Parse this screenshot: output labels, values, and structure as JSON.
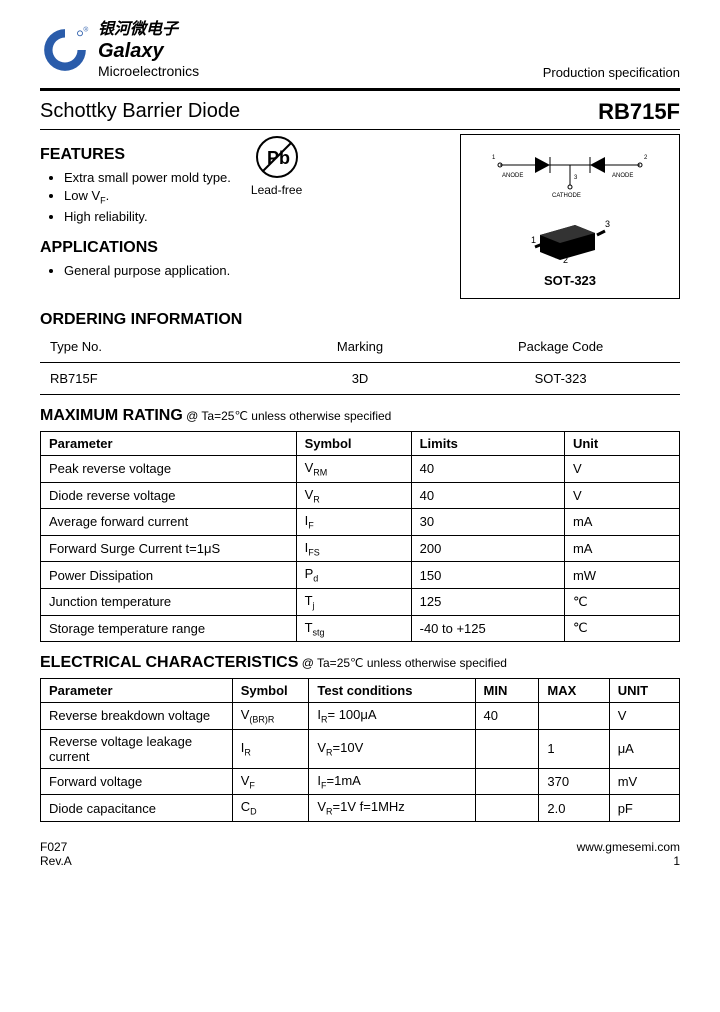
{
  "header": {
    "chinese": "银河微电子",
    "company1": "Galaxy",
    "company2": "Microelectronics",
    "spec": "Production specification"
  },
  "title": {
    "product": "Schottky Barrier Diode",
    "partno": "RB715F"
  },
  "features": {
    "heading": "FEATURES",
    "items": [
      "Extra small power mold type.",
      "Low V",
      "High reliability."
    ],
    "lowvf_sub": "F",
    "leadfree": "Lead-free"
  },
  "applications": {
    "heading": "APPLICATIONS",
    "items": [
      "General purpose application."
    ]
  },
  "package": {
    "label": "SOT-323",
    "anode": "ANODE",
    "cathode": "CATHODE"
  },
  "ordering": {
    "heading": "ORDERING INFORMATION",
    "cols": [
      "Type No.",
      "Marking",
      "Package Code"
    ],
    "row": [
      "RB715F",
      "3D",
      "SOT-323"
    ]
  },
  "maxrating": {
    "heading": "MAXIMUM RATING",
    "sub": " @ Ta=25℃ unless otherwise specified",
    "cols": [
      "Parameter",
      "Symbol",
      "Limits",
      "Unit"
    ],
    "rows": [
      {
        "p": "Peak reverse voltage",
        "s": "V",
        "ss": "RM",
        "l": "40",
        "u": "V"
      },
      {
        "p": "Diode reverse voltage",
        "s": "V",
        "ss": "R",
        "l": "40",
        "u": "V"
      },
      {
        "p": "Average forward current",
        "s": "I",
        "ss": "F",
        "l": "30",
        "u": "mA"
      },
      {
        "p": "Forward Surge Current        t=1μS",
        "s": "I",
        "ss": "FS",
        "l": "200",
        "u": "mA"
      },
      {
        "p": "Power Dissipation",
        "s": "P",
        "ss": "d",
        "l": "150",
        "u": "mW"
      },
      {
        "p": "Junction temperature",
        "s": "T",
        "ss": "j",
        "l": "125",
        "u": "℃"
      },
      {
        "p": "Storage temperature range",
        "s": "T",
        "ss": "stg",
        "l": "-40 to +125",
        "u": "℃"
      }
    ]
  },
  "elec": {
    "heading": "ELECTRICAL CHARACTERISTICS",
    "sub": " @ Ta=25℃ unless otherwise specified",
    "cols": [
      "Parameter",
      "Symbol",
      "Test    conditions",
      "MIN",
      "MAX",
      "UNIT"
    ],
    "rows": [
      {
        "p": "Reverse breakdown voltage",
        "s": "V",
        "ss": "(BR)R",
        "tc": "I",
        "tcs": "R",
        "tcv": "= 100μA",
        "min": "40",
        "max": "",
        "u": "V"
      },
      {
        "p": "Reverse voltage leakage current",
        "s": "I",
        "ss": "R",
        "tc": "V",
        "tcs": "R",
        "tcv": "=10V",
        "min": "",
        "max": "1",
        "u": "μA"
      },
      {
        "p": "Forward voltage",
        "s": "V",
        "ss": "F",
        "tc": "I",
        "tcs": "F",
        "tcv": "=1mA",
        "min": "",
        "max": "370",
        "u": "mV"
      },
      {
        "p": "Diode capacitance",
        "s": "C",
        "ss": "D",
        "tc": "V",
        "tcs": "R",
        "tcv": "=1V   f=1MHz",
        "min": "",
        "max": "2.0",
        "u": "pF"
      }
    ]
  },
  "footer": {
    "code": "F027",
    "rev": "Rev.A",
    "url": "www.gmesemi.com",
    "page": "1"
  }
}
